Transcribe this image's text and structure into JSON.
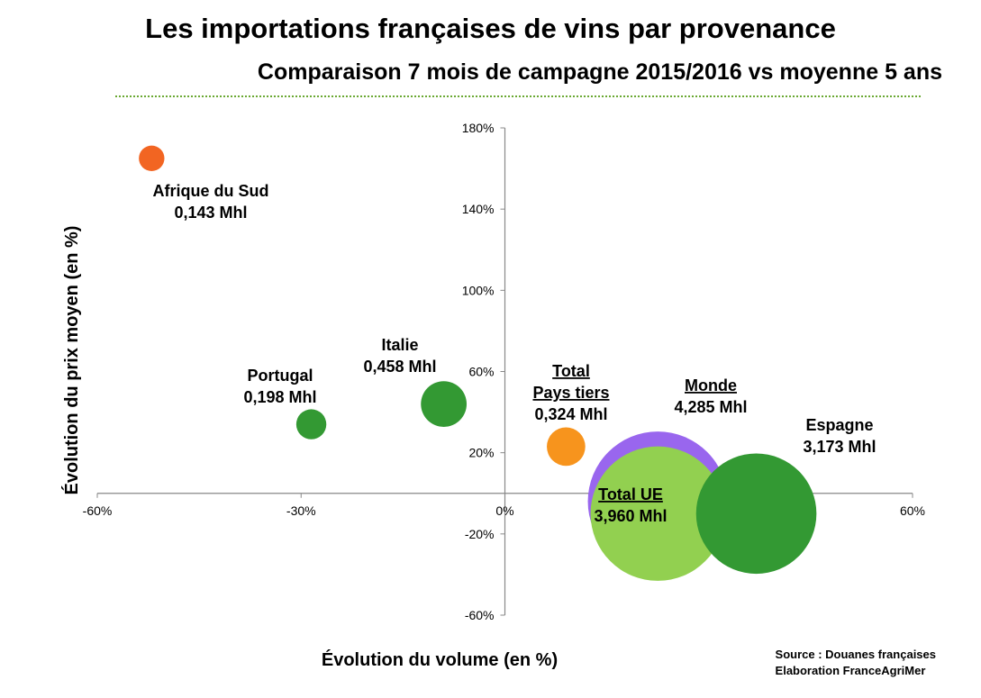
{
  "header": {
    "title": "Les importations françaises de vins par provenance",
    "subtitle": "Comparaison 7 mois de campagne 2015/2016 vs moyenne 5 ans"
  },
  "source": {
    "line1": "Source : Douanes françaises",
    "line2": "Elaboration FranceAgriMer"
  },
  "chart_data": {
    "type": "bubble",
    "xlabel": "Évolution du volume (en %)",
    "ylabel": "Évolution du prix moyen (en %)",
    "xlim": [
      -60,
      60
    ],
    "ylim": [
      -60,
      180
    ],
    "x_ticks": [
      -60,
      -30,
      0,
      60
    ],
    "x_tick_labels": [
      "-60%",
      "-30%",
      "0%",
      "60%"
    ],
    "y_ticks": [
      -60,
      -20,
      20,
      60,
      100,
      140,
      180
    ],
    "y_tick_labels": [
      "-60%",
      "-20%",
      "20%",
      "60%",
      "100%",
      "140%",
      "180%"
    ],
    "grid": false,
    "legend": "none",
    "bubbles": [
      {
        "name": "Monde",
        "volume_label": "4,285 Mhl",
        "volume_mhl": 4.285,
        "x": 22.5,
        "y": -4,
        "color": "#9966ee",
        "underline": true,
        "label_lines": [
          "Monde"
        ]
      },
      {
        "name": "Total UE",
        "volume_label": "3,960 Mhl",
        "volume_mhl": 3.96,
        "x": 22.5,
        "y": -10,
        "color": "#92d050",
        "underline": true,
        "label_lines": [
          "Total UE"
        ]
      },
      {
        "name": "Espagne",
        "volume_label": "3,173 Mhl",
        "volume_mhl": 3.173,
        "x": 37,
        "y": -10,
        "color": "#339933",
        "underline": false,
        "label_lines": [
          "Espagne"
        ]
      },
      {
        "name": "Afrique du Sud",
        "volume_label": "0,143 Mhl",
        "volume_mhl": 0.143,
        "x": -52,
        "y": 165,
        "color": "#f26522",
        "underline": false,
        "label_lines": [
          "Afrique du Sud"
        ]
      },
      {
        "name": "Portugal",
        "volume_label": "0,198 Mhl",
        "volume_mhl": 0.198,
        "x": -28.5,
        "y": 34,
        "color": "#339933",
        "underline": false,
        "label_lines": [
          "Portugal"
        ]
      },
      {
        "name": "Italie",
        "volume_label": "0,458 Mhl",
        "volume_mhl": 0.458,
        "x": -9,
        "y": 44,
        "color": "#339933",
        "underline": false,
        "label_lines": [
          "Italie"
        ]
      },
      {
        "name": "Total Pays tiers",
        "volume_label": "0,324 Mhl",
        "volume_mhl": 0.324,
        "x": 9,
        "y": 23,
        "color": "#f7941d",
        "underline": true,
        "label_lines": [
          "Total",
          "Pays tiers"
        ]
      }
    ]
  }
}
